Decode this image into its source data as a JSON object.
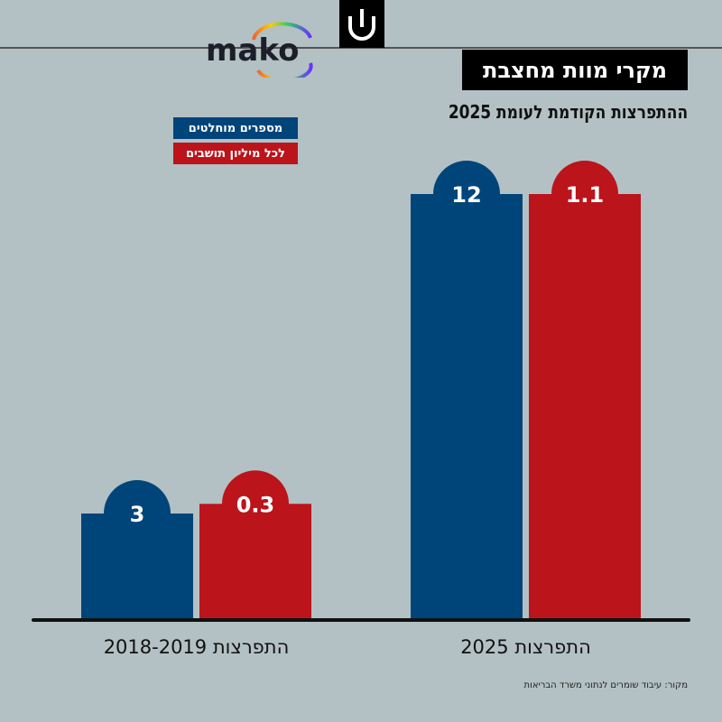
{
  "header": {
    "title": "מקרי מוות מחצבת",
    "subtitle": "ההתפרצות הקודמת לעומת 2025",
    "logo_text": "mako"
  },
  "colors": {
    "absolute": "#00457a",
    "per_million": "#bb141b",
    "background": "#b3c1c4"
  },
  "chart_data": {
    "type": "bar",
    "title": "מקרי מוות מחצבת",
    "subtitle": "ההתפרצות הקודמת לעומת 2025",
    "categories": [
      "התפרצות 2018-2019",
      "התפרצות 2025"
    ],
    "series": [
      {
        "name": "מספרים מוחלטים",
        "values": [
          3,
          12
        ],
        "labels": [
          "3",
          "12"
        ]
      },
      {
        "name": "לכל מיליון תושבים",
        "values": [
          0.3,
          1.1
        ],
        "labels": [
          "0.3",
          "1.1"
        ]
      }
    ],
    "legend": "top-left",
    "grid": false
  },
  "source": "מקור: עיבוד שומרים לנתוני משרד הבריאות"
}
